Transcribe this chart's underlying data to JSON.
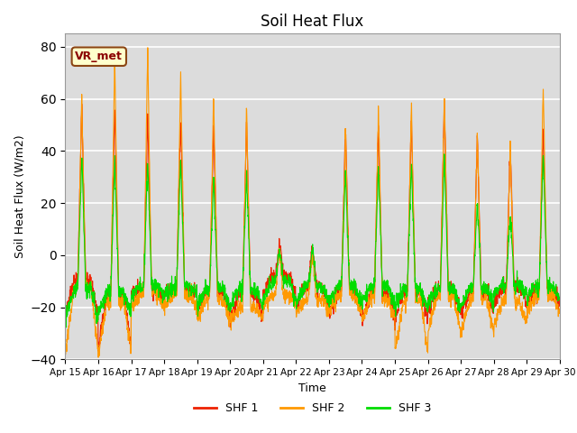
{
  "title": "Soil Heat Flux",
  "ylabel": "Soil Heat Flux (W/m2)",
  "xlabel": "Time",
  "ylim": [
    -40,
    85
  ],
  "yticks": [
    -40,
    -20,
    0,
    20,
    40,
    60,
    80
  ],
  "colors": {
    "SHF 1": "#ee2200",
    "SHF 2": "#ff9900",
    "SHF 3": "#00dd00"
  },
  "legend_labels": [
    "SHF 1",
    "SHF 2",
    "SHF 3"
  ],
  "annotation_text": "VR_met",
  "background_color": "#dcdcdc",
  "n_days": 15,
  "start_day": 15,
  "samples_per_day": 144
}
